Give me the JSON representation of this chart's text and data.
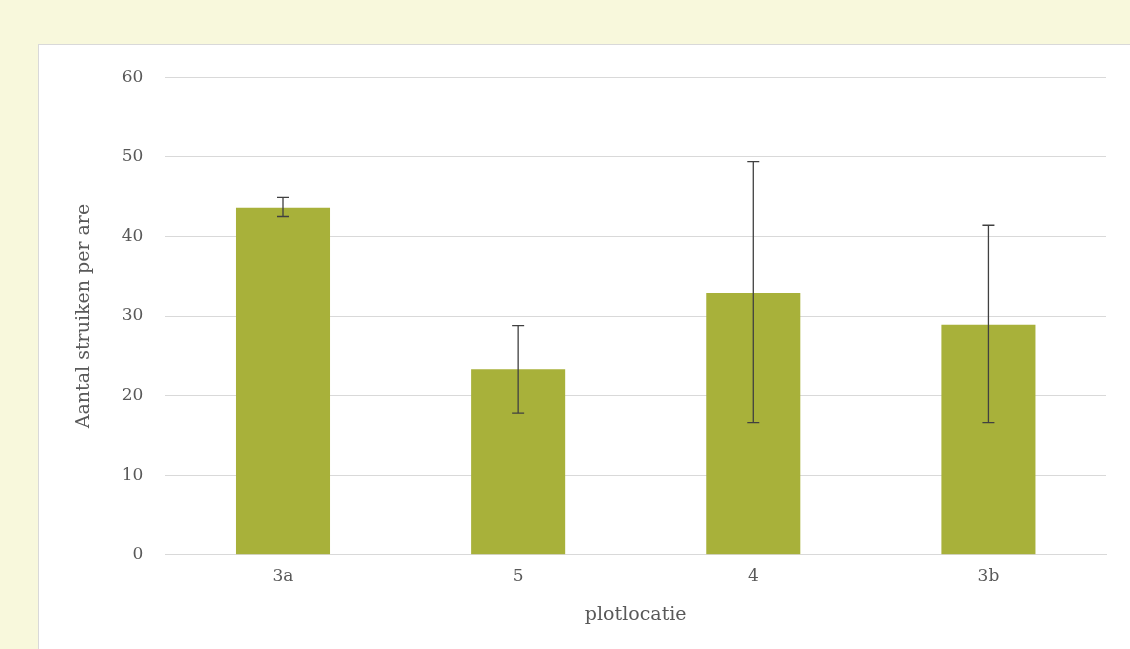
{
  "chart_data": {
    "type": "bar",
    "xlabel": "plotlocatie",
    "ylabel": "Aantal struiken per are",
    "categories": [
      "3a",
      "5",
      "4",
      "3b"
    ],
    "values": [
      43.6,
      23.3,
      32.9,
      28.9
    ],
    "errors": [
      [
        42.5,
        44.9
      ],
      [
        17.8,
        28.8
      ],
      [
        16.6,
        49.4
      ],
      [
        16.6,
        41.4
      ]
    ],
    "color": "#a8b13a",
    "ylim": [
      0,
      60
    ],
    "yticks": [
      0,
      10,
      20,
      30,
      40,
      50,
      60
    ],
    "grid": "y",
    "legend": false
  }
}
